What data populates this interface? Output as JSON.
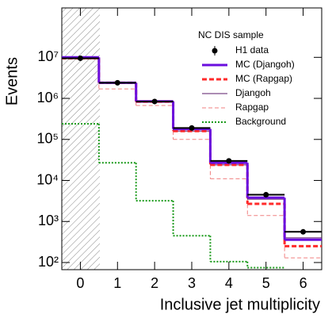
{
  "chart_data": {
    "type": "step",
    "xlabel": "Inclusive jet multiplicity",
    "ylabel": "Events",
    "legend_title": "NC DIS sample",
    "legend": "upper right",
    "log_y": true,
    "categories": [
      "0",
      "1",
      "2",
      "3",
      "4",
      "5",
      "6"
    ],
    "xlim": [
      -0.5,
      6.5
    ],
    "ylim": [
      67,
      160000000
    ],
    "yticks": [
      {
        "value": 100,
        "label": "10²"
      },
      {
        "value": 1000,
        "label": "10³"
      },
      {
        "value": 10000,
        "label": "10⁴"
      },
      {
        "value": 100000,
        "label": "10⁵"
      },
      {
        "value": 1000000,
        "label": "10⁶"
      },
      {
        "value": 10000000,
        "label": "10⁷"
      }
    ],
    "series": [
      {
        "name": "H1 data",
        "color": "#000000",
        "marker": "point",
        "values": [
          9500000,
          2400000,
          840000,
          190000,
          30000,
          4500,
          560
        ]
      },
      {
        "name": "MC (Djangoh)",
        "color": "#6a0dde",
        "width": 3,
        "dash": false,
        "values": [
          10000000,
          2400000,
          850000,
          180000,
          27000,
          3800,
          360
        ]
      },
      {
        "name": "MC (Rapgap)",
        "color": "#ff2a2a",
        "width": 3,
        "dash": true,
        "values": [
          9600000,
          2400000,
          830000,
          160000,
          24000,
          2700,
          250
        ]
      },
      {
        "name": "Djangoh",
        "color": "#5a1a6a",
        "width": 1,
        "dash": false,
        "values": [
          10000000,
          2400000,
          800000,
          160000,
          24000,
          3500,
          400
        ]
      },
      {
        "name": "Rapgap",
        "color": "#f08080",
        "width": 1,
        "dash": true,
        "values": [
          9000000,
          1700000,
          670000,
          100000,
          11000,
          1400,
          130
        ]
      },
      {
        "name": "Background",
        "color": "#1a9a1a",
        "width": 2,
        "dotted": true,
        "values": [
          240000,
          27000,
          3200,
          450,
          105,
          75,
          null
        ]
      }
    ]
  }
}
